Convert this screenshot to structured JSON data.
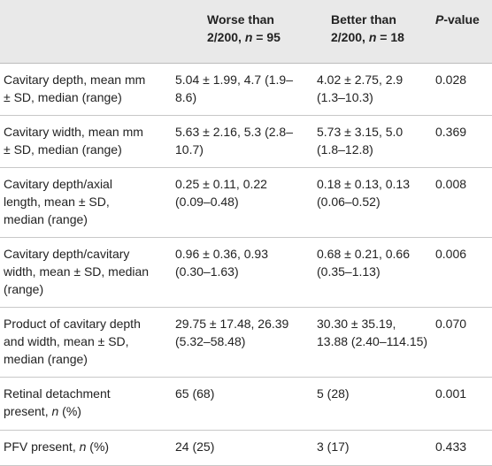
{
  "table": {
    "header": [
      "",
      [
        {
          "text": "Worse than 2/200, "
        },
        {
          "text": "n",
          "italic": true
        },
        {
          "text": " = 95"
        }
      ],
      [
        {
          "text": "Better than 2/200, "
        },
        {
          "text": "n",
          "italic": true
        },
        {
          "text": " = 18"
        }
      ],
      [
        {
          "text": "P",
          "italic": true
        },
        {
          "text": "-value"
        }
      ]
    ],
    "rows": [
      [
        "Cavitary depth, mean mm ± SD, median (range)",
        "5.04 ± 1.99, 4.7 (1.9–8.6)",
        "4.02 ± 2.75, 2.9 (1.3–10.3)",
        "0.028"
      ],
      [
        "Cavitary width, mean mm ± SD, median (range)",
        "5.63 ± 2.16, 5.3 (2.8–10.7)",
        "5.73 ± 3.15, 5.0 (1.8–12.8)",
        "0.369"
      ],
      [
        "Cavitary depth/axial length, mean ± SD, median (range)",
        "0.25 ± 0.11, 0.22 (0.09–0.48)",
        "0.18 ± 0.13, 0.13 (0.06–0.52)",
        "0.008"
      ],
      [
        "Cavitary depth/cavitary width, mean ± SD, median (range)",
        "0.96 ± 0.36, 0.93 (0.30–1.63)",
        "0.68 ± 0.21, 0.66 (0.35–1.13)",
        "0.006"
      ],
      [
        "Product of cavitary depth and width, mean ± SD, median (range)",
        "29.75 ± 17.48, 26.39 (5.32–58.48)",
        "30.30 ± 35.19, 13.88 (2.40–114.15)",
        "0.070"
      ],
      [
        [
          {
            "text": "Retinal detachment present, "
          },
          {
            "text": "n",
            "italic": true
          },
          {
            "text": " (%)"
          }
        ],
        "65 (68)",
        "5 (28)",
        "0.001"
      ],
      [
        [
          {
            "text": "PFV present, "
          },
          {
            "text": "n",
            "italic": true
          },
          {
            "text": " (%)"
          }
        ],
        "24 (25)",
        "3 (17)",
        "0.433"
      ]
    ]
  }
}
